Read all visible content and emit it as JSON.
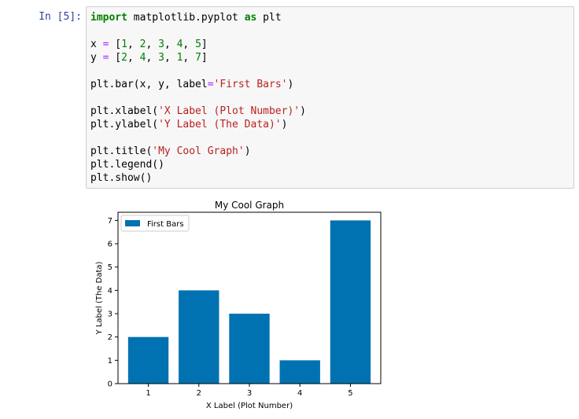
{
  "cell": {
    "prompt": "In [5]:",
    "code_lines": [
      [
        {
          "t": "import",
          "c": "kw"
        },
        {
          "t": " matplotlib.pyplot ",
          "c": ""
        },
        {
          "t": "as",
          "c": "kw"
        },
        {
          "t": " plt",
          "c": ""
        }
      ],
      [],
      [
        {
          "t": "x ",
          "c": ""
        },
        {
          "t": "=",
          "c": "op"
        },
        {
          "t": " [",
          "c": ""
        },
        {
          "t": "1",
          "c": "num"
        },
        {
          "t": ", ",
          "c": ""
        },
        {
          "t": "2",
          "c": "num"
        },
        {
          "t": ", ",
          "c": ""
        },
        {
          "t": "3",
          "c": "num"
        },
        {
          "t": ", ",
          "c": ""
        },
        {
          "t": "4",
          "c": "num"
        },
        {
          "t": ", ",
          "c": ""
        },
        {
          "t": "5",
          "c": "num"
        },
        {
          "t": "]",
          "c": ""
        }
      ],
      [
        {
          "t": "y ",
          "c": ""
        },
        {
          "t": "=",
          "c": "op"
        },
        {
          "t": " [",
          "c": ""
        },
        {
          "t": "2",
          "c": "num"
        },
        {
          "t": ", ",
          "c": ""
        },
        {
          "t": "4",
          "c": "num"
        },
        {
          "t": ", ",
          "c": ""
        },
        {
          "t": "3",
          "c": "num"
        },
        {
          "t": ", ",
          "c": ""
        },
        {
          "t": "1",
          "c": "num"
        },
        {
          "t": ", ",
          "c": ""
        },
        {
          "t": "7",
          "c": "num"
        },
        {
          "t": "]",
          "c": ""
        }
      ],
      [],
      [
        {
          "t": "plt.bar(x, y, label",
          "c": ""
        },
        {
          "t": "=",
          "c": "op"
        },
        {
          "t": "'First Bars'",
          "c": "str"
        },
        {
          "t": ")",
          "c": ""
        }
      ],
      [],
      [
        {
          "t": "plt.xlabel(",
          "c": ""
        },
        {
          "t": "'X Label (Plot Number)'",
          "c": "str"
        },
        {
          "t": ")",
          "c": ""
        }
      ],
      [
        {
          "t": "plt.ylabel(",
          "c": ""
        },
        {
          "t": "'Y Label (The Data)'",
          "c": "str"
        },
        {
          "t": ")",
          "c": ""
        }
      ],
      [],
      [
        {
          "t": "plt.title(",
          "c": ""
        },
        {
          "t": "'My Cool Graph'",
          "c": "str"
        },
        {
          "t": ")",
          "c": ""
        }
      ],
      [
        {
          "t": "plt.legend()",
          "c": ""
        }
      ],
      [
        {
          "t": "plt.show()",
          "c": ""
        }
      ]
    ]
  },
  "chart_data": {
    "type": "bar",
    "title": "My Cool Graph",
    "xlabel": "X Label (Plot Number)",
    "ylabel": "Y Label (The Data)",
    "categories": [
      "1",
      "2",
      "3",
      "4",
      "5"
    ],
    "series": [
      {
        "name": "First Bars",
        "values": [
          2,
          4,
          3,
          1,
          7
        ]
      }
    ],
    "yticks": [
      "0",
      "1",
      "2",
      "3",
      "4",
      "5",
      "6",
      "7"
    ],
    "ylim": [
      0,
      7.35
    ],
    "legend": "top-left",
    "grid": false,
    "bar_color": "#0072b2"
  }
}
